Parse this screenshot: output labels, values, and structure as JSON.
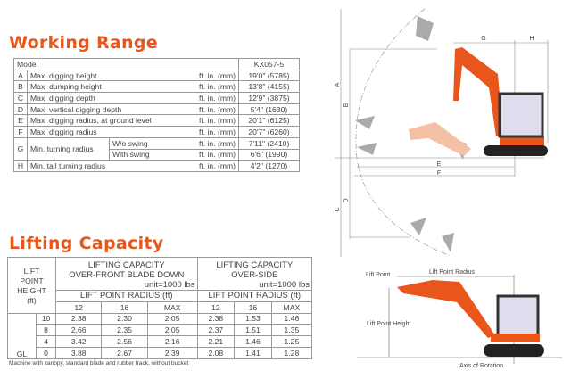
{
  "working_range": {
    "title": "Working Range",
    "model_label": "Model",
    "model": "KX057-5",
    "unit": "ft. in. (mm)",
    "rows": [
      {
        "letter": "A",
        "label": "Max. digging height",
        "value": "19'0\" (5785)"
      },
      {
        "letter": "B",
        "label": "Max. dumping height",
        "value": "13'8\" (4155)"
      },
      {
        "letter": "C",
        "label": "Max. digging depth",
        "value": "12'9\" (3875)"
      },
      {
        "letter": "D",
        "label": "Max. vertical digging depth",
        "value": "5'4\" (1630)"
      },
      {
        "letter": "E",
        "label": "Max. digging radius, at ground level",
        "value": "20'1\" (6125)"
      },
      {
        "letter": "F",
        "label": "Max. digging radius",
        "value": "20'7\" (6260)"
      },
      {
        "letter": "G",
        "label": "Min. turning radius",
        "sub": [
          {
            "label": "W/o swing",
            "value": "7'11\" (2410)"
          },
          {
            "label": "With swing",
            "value": "6'6\" (1990)"
          }
        ]
      },
      {
        "letter": "H",
        "label": "Min. tail turning radius",
        "value": "4'2\" (1270)"
      }
    ]
  },
  "lifting_capacity": {
    "title": "Lifting Capacity",
    "height_header": [
      "LIFT",
      "POINT",
      "HEIGHT",
      "(ft)"
    ],
    "front_header": [
      "LIFTING CAPACITY",
      "OVER-FRONT BLADE DOWN"
    ],
    "side_header": [
      "LIFTING CAPACITY",
      "OVER-SIDE"
    ],
    "unit": "unit=1000 lbs",
    "radius_header": "LIFT POINT RADIUS (ft)",
    "radius_cols": [
      "12",
      "16",
      "MAX"
    ],
    "gl_label": "GL",
    "rows": [
      {
        "height": "10",
        "front": [
          "2.38",
          "2.30",
          "2.05"
        ],
        "side": [
          "2.38",
          "1.53",
          "1.46"
        ]
      },
      {
        "height": "8",
        "front": [
          "2.66",
          "2.35",
          "2.05"
        ],
        "side": [
          "2.37",
          "1.51",
          "1.35"
        ]
      },
      {
        "height": "4",
        "front": [
          "3.42",
          "2.56",
          "2.16"
        ],
        "side": [
          "2.21",
          "1.46",
          "1.25"
        ]
      },
      {
        "height": "0",
        "front": [
          "3.88",
          "2.67",
          "2.39"
        ],
        "side": [
          "2.08",
          "1.41",
          "1.28"
        ]
      }
    ],
    "note": "Machine with canopy, standard blade and rubber track, without bucket"
  },
  "diagram_top": {
    "labels": [
      "A",
      "B",
      "C",
      "D",
      "E",
      "F",
      "G",
      "H"
    ]
  },
  "diagram_bottom": {
    "lift_point": "Lift Point",
    "lift_point_radius": "Lift Point Radius",
    "lift_point_height": "Lift Point Height",
    "axis_of_rotation": "Axis of Rotation"
  },
  "colors": {
    "accent": "#e8561c"
  }
}
